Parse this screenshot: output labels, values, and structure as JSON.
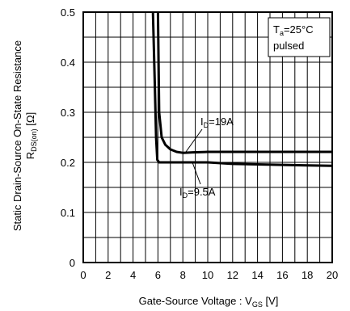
{
  "chart_data": {
    "type": "line",
    "xlabel": {
      "main": "Gate-Source Voltage : V",
      "sub": "GS",
      "unit": " [V]"
    },
    "ylabel": {
      "line1": "Static Drain-Source On-State Resistance",
      "main": "R",
      "sub": "DS(on)",
      "unit": " [Ω]"
    },
    "xlim": [
      0,
      20
    ],
    "ylim": [
      0,
      0.5
    ],
    "x_ticks": [
      "0",
      "2",
      "4",
      "6",
      "8",
      "10",
      "12",
      "14",
      "16",
      "18",
      "20"
    ],
    "y_ticks": [
      "0",
      "0.1",
      "0.2",
      "0.3",
      "0.4",
      "0.5"
    ],
    "grid": true,
    "legend_box": {
      "line1_main": "T",
      "line1_sub": "a",
      "line1_rest": "=25°C",
      "line2": "pulsed"
    },
    "series": [
      {
        "name": "ID=19A",
        "label_main": "I",
        "label_sub": "D",
        "label_rest": "=19A",
        "x": [
          6.0,
          6.1,
          6.3,
          6.6,
          7.0,
          7.5,
          8.0,
          8.8,
          10.0,
          12.0,
          14.0,
          16.0,
          18.0,
          20.0
        ],
        "y": [
          0.5,
          0.3,
          0.25,
          0.235,
          0.226,
          0.221,
          0.219,
          0.22,
          0.221,
          0.221,
          0.221,
          0.221,
          0.221,
          0.221
        ]
      },
      {
        "name": "ID=9.5A",
        "label_main": "I",
        "label_sub": "D",
        "label_rest": "=9.5A",
        "x": [
          5.6,
          5.75,
          5.85,
          5.95,
          6.1,
          6.5,
          8.0,
          10.0,
          12.0,
          14.0,
          16.0,
          18.0,
          20.0
        ],
        "y": [
          0.5,
          0.35,
          0.25,
          0.205,
          0.2,
          0.2,
          0.2,
          0.2,
          0.197,
          0.196,
          0.195,
          0.194,
          0.193
        ]
      }
    ]
  }
}
